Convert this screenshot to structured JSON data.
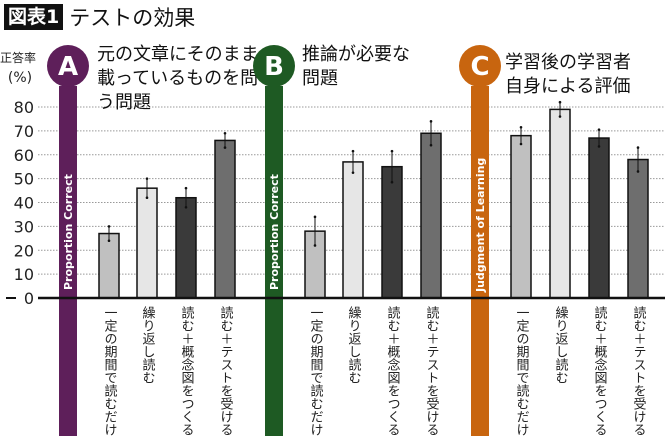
{
  "header": {
    "badge": "図表1",
    "title": "テストの効果"
  },
  "chart_data": {
    "type": "bar",
    "ylabel": [
      "正答率",
      "(%)"
    ],
    "ylim": [
      0,
      80
    ],
    "yticks": [
      0,
      10,
      20,
      30,
      40,
      50,
      60,
      70,
      80
    ],
    "grid": true,
    "categories": [
      "一定の期間で読むだけ",
      "繰り返し読む",
      "読む＋概念図をつくる",
      "読む＋テストを受ける"
    ],
    "bar_colors": [
      "#c0c0c0",
      "#e6e6e6",
      "#3a3a3a",
      "#6e6e6e"
    ],
    "panels": [
      {
        "letter": "A",
        "title": [
          "元の文章にそのまま",
          "載っているものを問",
          "う問題"
        ],
        "band_label": "Proportion Correct",
        "color": "#5e1f5a",
        "values": [
          27,
          46,
          42,
          66
        ],
        "errors": [
          3,
          4,
          4,
          3
        ]
      },
      {
        "letter": "B",
        "title": [
          "推論が必要な",
          "問題"
        ],
        "band_label": "Proportion Correct",
        "color": "#1e5a23",
        "values": [
          28,
          57,
          55,
          69
        ],
        "errors": [
          6,
          4.5,
          6.5,
          5
        ]
      },
      {
        "letter": "C",
        "title": [
          "学習後の学習者",
          "自身による評価"
        ],
        "band_label": "Judgment of Learning",
        "color": "#c8650f",
        "values": [
          68,
          79,
          67,
          58
        ],
        "errors": [
          3.5,
          3,
          3.5,
          5
        ]
      }
    ]
  }
}
